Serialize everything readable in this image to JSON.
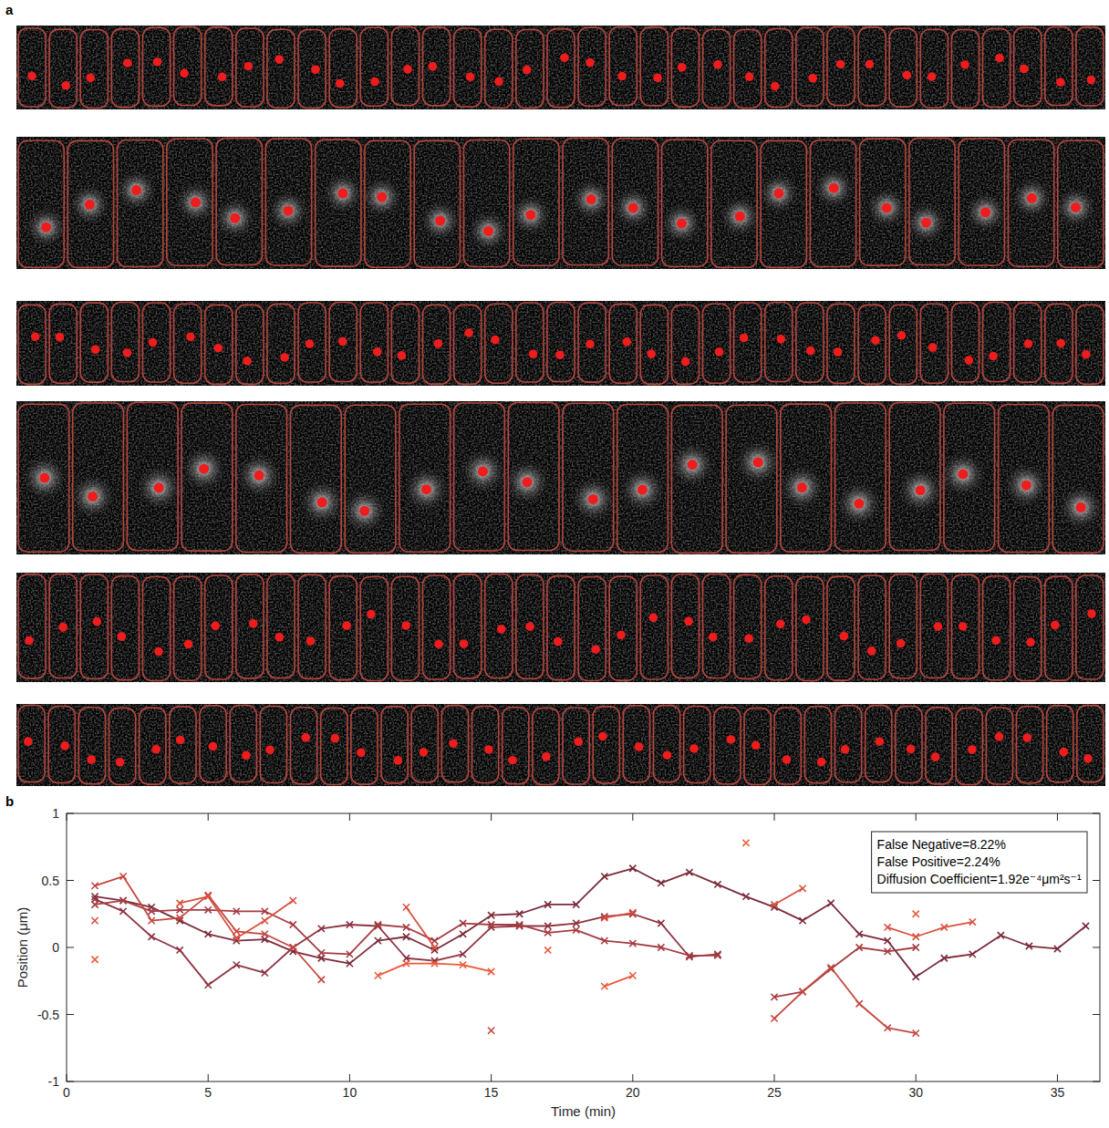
{
  "panel_labels": [
    "a",
    "b"
  ],
  "chart_data": {
    "type": "line",
    "xlabel": "Time (min)",
    "ylabel": "Position (μm)",
    "annotations": [
      "False Negative=8.22%",
      "False Positive=2.24%",
      "Diffusion Coefficient=1.92e⁻⁴μm²s⁻¹"
    ],
    "x": [
      1,
      2,
      3,
      4,
      5,
      6,
      7,
      8,
      9,
      10,
      11,
      12,
      13,
      14,
      15,
      16,
      17,
      18,
      19,
      20,
      21,
      22,
      23,
      24,
      25,
      26,
      27,
      28,
      29,
      30,
      31,
      32,
      33,
      34,
      35,
      36
    ],
    "xlim": [
      0,
      36.5
    ],
    "xticks": [
      0,
      5,
      10,
      15,
      20,
      25,
      30,
      35
    ],
    "ylim": [
      -1,
      1
    ],
    "yticks": [
      -1,
      -0.5,
      0,
      0.5,
      1
    ],
    "grid": false,
    "marker": "x",
    "series": [
      {
        "color": "#7a2b3a",
        "values": [
          0.38,
          0.35,
          0.3,
          0.2,
          0.1,
          0.05,
          0.06,
          -0.03,
          -0.08,
          -0.12,
          0.05,
          0.08,
          -0.02,
          0.1,
          0.24,
          0.25,
          0.32,
          0.32,
          0.53,
          0.59,
          0.48,
          0.56,
          0.47,
          0.38,
          0.3,
          0.2,
          0.33,
          0.1,
          0.05,
          -0.22,
          -0.08,
          -0.05,
          0.09,
          0.01,
          -0.01,
          0.16
        ]
      },
      {
        "color": "#8e3340",
        "values": [
          0.36,
          0.27,
          0.08,
          -0.02,
          -0.28,
          -0.13,
          -0.19,
          0.0,
          0.14,
          0.17,
          0.16,
          -0.08,
          -0.1,
          -0.05,
          0.15,
          0.16,
          0.16,
          0.18,
          0.23,
          0.25,
          0.18,
          -0.07,
          -0.05,
          null,
          null,
          null,
          null,
          null,
          null,
          null,
          null,
          null,
          null,
          null,
          null,
          null
        ]
      },
      {
        "color": "#a53c41",
        "values": [
          0.32,
          0.35,
          0.27,
          0.28,
          0.28,
          0.27,
          0.27,
          0.17,
          -0.04,
          -0.05,
          0.17,
          0.15,
          0.05,
          0.18,
          0.17,
          0.17,
          0.11,
          0.13,
          0.05,
          0.03,
          0.0,
          -0.06,
          -0.06,
          null,
          -0.37,
          -0.33,
          -0.16,
          0.0,
          -0.03,
          0.0,
          null,
          null,
          null,
          null,
          null,
          null
        ]
      },
      {
        "color": "#c44740",
        "values": [
          0.46,
          0.53,
          0.2,
          0.22,
          0.39,
          0.12,
          0.1,
          0.0,
          -0.24,
          null,
          null,
          null,
          null,
          null,
          -0.62,
          null,
          null,
          null,
          null,
          null,
          null,
          null,
          null,
          null,
          -0.53,
          -0.33,
          -0.15,
          -0.42,
          -0.6,
          -0.64,
          null,
          null,
          null,
          null,
          null,
          null
        ]
      },
      {
        "color": "#d9503f",
        "values": [
          0.2,
          null,
          null,
          0.33,
          0.38,
          0.07,
          0.2,
          0.35,
          null,
          null,
          null,
          0.3,
          0.0,
          null,
          null,
          null,
          null,
          null,
          0.22,
          0.26,
          null,
          null,
          null,
          null,
          0.32,
          0.44,
          null,
          null,
          0.15,
          0.08,
          0.15,
          0.19,
          null,
          null,
          null,
          null
        ]
      },
      {
        "color": "#ee5a3c",
        "values": [
          -0.09,
          null,
          null,
          null,
          null,
          null,
          null,
          null,
          null,
          null,
          -0.21,
          -0.12,
          -0.12,
          -0.13,
          -0.18,
          null,
          -0.02,
          null,
          -0.29,
          -0.21,
          null,
          null,
          null,
          0.78,
          null,
          null,
          null,
          null,
          null,
          0.25,
          null,
          null,
          null,
          null,
          null,
          null
        ]
      }
    ]
  }
}
